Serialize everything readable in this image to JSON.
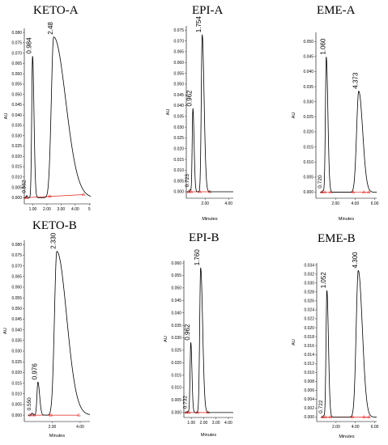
{
  "chart_data": [
    {
      "type": "line",
      "title": "KETO-A",
      "xlabel": "",
      "ylabel": "AU",
      "xlim": [
        0.4,
        5.1
      ],
      "ylim": [
        -0.003,
        0.082
      ],
      "xticks": [
        "1.00",
        "2.00",
        "3.00",
        "4.00",
        "5"
      ],
      "xtick_values": [
        1,
        2,
        3,
        4,
        5
      ],
      "yticks": [
        "0.000",
        "0.005",
        "0.010",
        "0.015",
        "0.020",
        "0.025",
        "0.030",
        "0.035",
        "0.040",
        "0.045",
        "0.050",
        "0.055",
        "0.060",
        "0.065",
        "0.070",
        "0.075",
        "0.080"
      ],
      "ytick_values": [
        0,
        0.005,
        0.01,
        0.015,
        0.02,
        0.025,
        0.03,
        0.035,
        0.04,
        0.045,
        0.05,
        0.055,
        0.06,
        0.065,
        0.07,
        0.075,
        0.08
      ],
      "peaks": [
        {
          "rt": 0.562,
          "label": "0.562",
          "height": 0.001,
          "wl": 0.03,
          "wr": 0.05
        },
        {
          "rt": 0.984,
          "label": "0.984",
          "height": 0.0685,
          "wl": 0.06,
          "wr": 0.1
        },
        {
          "rt": 2.48,
          "label": "2.48",
          "height": 0.0778,
          "wl": 0.17,
          "wr": 0.85
        }
      ],
      "baseline": {
        "x": [
          0.5,
          4.6
        ],
        "y": [
          0.0,
          0.0015
        ]
      },
      "baseline_marks": [
        0.5,
        0.6,
        2.2,
        4.6
      ]
    },
    {
      "type": "line",
      "title": "EPI-A",
      "xlabel": "Minutes",
      "ylabel": "AU",
      "xlim": [
        0.4,
        4.4
      ],
      "ylim": [
        -0.003,
        0.077
      ],
      "xticks": [
        "2.00",
        "4.00"
      ],
      "xtick_values": [
        2,
        4
      ],
      "yticks": [
        "0.000",
        "0.005",
        "0.010",
        "0.015",
        "0.020",
        "0.025",
        "0.030",
        "0.035",
        "0.040",
        "0.045",
        "0.050",
        "0.055",
        "0.060",
        "0.065",
        "0.070",
        "0.075"
      ],
      "ytick_values": [
        0,
        0.005,
        0.01,
        0.015,
        0.02,
        0.025,
        0.03,
        0.035,
        0.04,
        0.045,
        0.05,
        0.055,
        0.06,
        0.065,
        0.07,
        0.075
      ],
      "peaks": [
        {
          "rt": 0.723,
          "label": "0.723",
          "height": 0.001,
          "wl": 0.03,
          "wr": 0.05
        },
        {
          "rt": 0.962,
          "label": "0.962",
          "height": 0.0385,
          "wl": 0.06,
          "wr": 0.1
        },
        {
          "rt": 1.754,
          "label": "1.754",
          "height": 0.0728,
          "wl": 0.08,
          "wr": 0.16
        }
      ],
      "baseline": {
        "x": [
          0.6,
          2.4
        ],
        "y": [
          0.0,
          0.0
        ]
      },
      "baseline_marks": [
        0.6,
        0.8,
        1.55,
        2.4
      ]
    },
    {
      "type": "line",
      "title": "EME-A",
      "xlabel": "Minutes",
      "ylabel": "AU",
      "xlim": [
        0.0,
        6.2
      ],
      "ylim": [
        -0.002,
        0.053
      ],
      "xticks": [
        "2.00",
        "4.00",
        "6.00"
      ],
      "xtick_values": [
        2,
        4,
        6
      ],
      "yticks": [
        "0.000",
        "0.005",
        "0.010",
        "0.015",
        "0.020",
        "0.025",
        "0.030",
        "0.035",
        "0.040",
        "0.045",
        "0.050"
      ],
      "ytick_values": [
        0,
        0.005,
        0.01,
        0.015,
        0.02,
        0.025,
        0.03,
        0.035,
        0.04,
        0.045,
        0.05
      ],
      "peaks": [
        {
          "rt": 0.72,
          "label": "0.720",
          "height": 0.0005,
          "wl": 0.04,
          "wr": 0.06
        },
        {
          "rt": 1.06,
          "label": "1.060",
          "height": 0.0448,
          "wl": 0.09,
          "wr": 0.16
        },
        {
          "rt": 4.373,
          "label": "4.373",
          "height": 0.0335,
          "wl": 0.22,
          "wr": 0.4
        }
      ],
      "baseline": {
        "x": [
          0.6,
          5.5
        ],
        "y": [
          0.0,
          0.0
        ]
      },
      "baseline_marks": [
        0.6,
        0.9,
        1.5,
        3.8,
        4.9,
        5.4
      ]
    },
    {
      "type": "line",
      "title": "KETO-B",
      "xlabel": "Minutes",
      "ylabel": "AU",
      "xlim": [
        0.0,
        4.7
      ],
      "ylim": [
        -0.003,
        0.082
      ],
      "xticks": [
        "2.00",
        "4.00"
      ],
      "xtick_values": [
        2,
        4
      ],
      "yticks": [
        "0.000",
        "0.005",
        "0.010",
        "0.015",
        "0.020",
        "0.025",
        "0.030",
        "0.035",
        "0.040",
        "0.045",
        "0.050",
        "0.055",
        "0.060",
        "0.065",
        "0.070",
        "0.075",
        "0.080"
      ],
      "ytick_values": [
        0,
        0.005,
        0.01,
        0.015,
        0.02,
        0.025,
        0.03,
        0.035,
        0.04,
        0.045,
        0.05,
        0.055,
        0.06,
        0.065,
        0.07,
        0.075,
        0.08
      ],
      "peaks": [
        {
          "rt": 0.55,
          "label": "0.550",
          "height": 0.001,
          "wl": 0.04,
          "wr": 0.06
        },
        {
          "rt": 0.976,
          "label": "0.976",
          "height": 0.0155,
          "wl": 0.07,
          "wr": 0.12
        },
        {
          "rt": 2.33,
          "label": "2.330",
          "height": 0.0768,
          "wl": 0.17,
          "wr": 0.7
        }
      ],
      "baseline": {
        "x": [
          0.4,
          3.9
        ],
        "y": [
          0.0,
          0.0
        ]
      },
      "baseline_marks": [
        0.4,
        0.7,
        1.9,
        3.9
      ]
    },
    {
      "type": "line",
      "title": "EPI-B",
      "xlabel": "Minutes",
      "ylabel": "AU",
      "xlim": [
        0.4,
        4.4
      ],
      "ylim": [
        -0.002,
        0.061
      ],
      "xticks": [
        "1.00",
        "2.00",
        "3.00",
        "4.00"
      ],
      "xtick_values": [
        1,
        2,
        3,
        4
      ],
      "yticks": [
        "0.000",
        "0.005",
        "0.010",
        "0.015",
        "0.020",
        "0.025",
        "0.030",
        "0.035",
        "0.040",
        "0.045",
        "0.050",
        "0.055",
        "0.060"
      ],
      "ytick_values": [
        0,
        0.005,
        0.01,
        0.015,
        0.02,
        0.025,
        0.03,
        0.035,
        0.04,
        0.045,
        0.05,
        0.055,
        0.06
      ],
      "peaks": [
        {
          "rt": 0.732,
          "label": "0.732",
          "height": 0.0005,
          "wl": 0.03,
          "wr": 0.05
        },
        {
          "rt": 0.962,
          "label": "0.962",
          "height": 0.028,
          "wl": 0.06,
          "wr": 0.09
        },
        {
          "rt": 1.76,
          "label": "1.760",
          "height": 0.058,
          "wl": 0.08,
          "wr": 0.16
        }
      ],
      "baseline": {
        "x": [
          0.6,
          2.4
        ],
        "y": [
          0.0,
          0.0
        ]
      },
      "baseline_marks": [
        0.6,
        0.8,
        1.5,
        2.35
      ]
    },
    {
      "type": "line",
      "title": "EME-B",
      "xlabel": "Minutes",
      "ylabel": "AU",
      "xlim": [
        0.0,
        6.2
      ],
      "ylim": [
        -0.001,
        0.0345
      ],
      "xticks": [
        "2.00",
        "4.00",
        "6.00"
      ],
      "xtick_values": [
        2,
        4,
        6
      ],
      "yticks": [
        "0.000",
        "0.002",
        "0.004",
        "0.006",
        "0.008",
        "0.010",
        "0.012",
        "0.014",
        "0.016",
        "0.018",
        "0.020",
        "0.022",
        "0.024",
        "0.026",
        "0.028",
        "0.030",
        "0.032",
        "0.034"
      ],
      "ytick_values": [
        0,
        0.002,
        0.004,
        0.006,
        0.008,
        0.01,
        0.012,
        0.014,
        0.016,
        0.018,
        0.02,
        0.022,
        0.024,
        0.026,
        0.028,
        0.03,
        0.032,
        0.034
      ],
      "peaks": [
        {
          "rt": 0.722,
          "label": "0.722",
          "height": 0.0003,
          "wl": 0.04,
          "wr": 0.06
        },
        {
          "rt": 1.052,
          "label": "1.052",
          "height": 0.0283,
          "wl": 0.09,
          "wr": 0.16
        },
        {
          "rt": 4.3,
          "label": "4.300",
          "height": 0.0328,
          "wl": 0.22,
          "wr": 0.42
        }
      ],
      "baseline": {
        "x": [
          0.6,
          5.5
        ],
        "y": [
          0.0,
          0.0
        ]
      },
      "baseline_marks": [
        0.6,
        0.9,
        1.4,
        3.7,
        4.9,
        5.4
      ]
    }
  ]
}
